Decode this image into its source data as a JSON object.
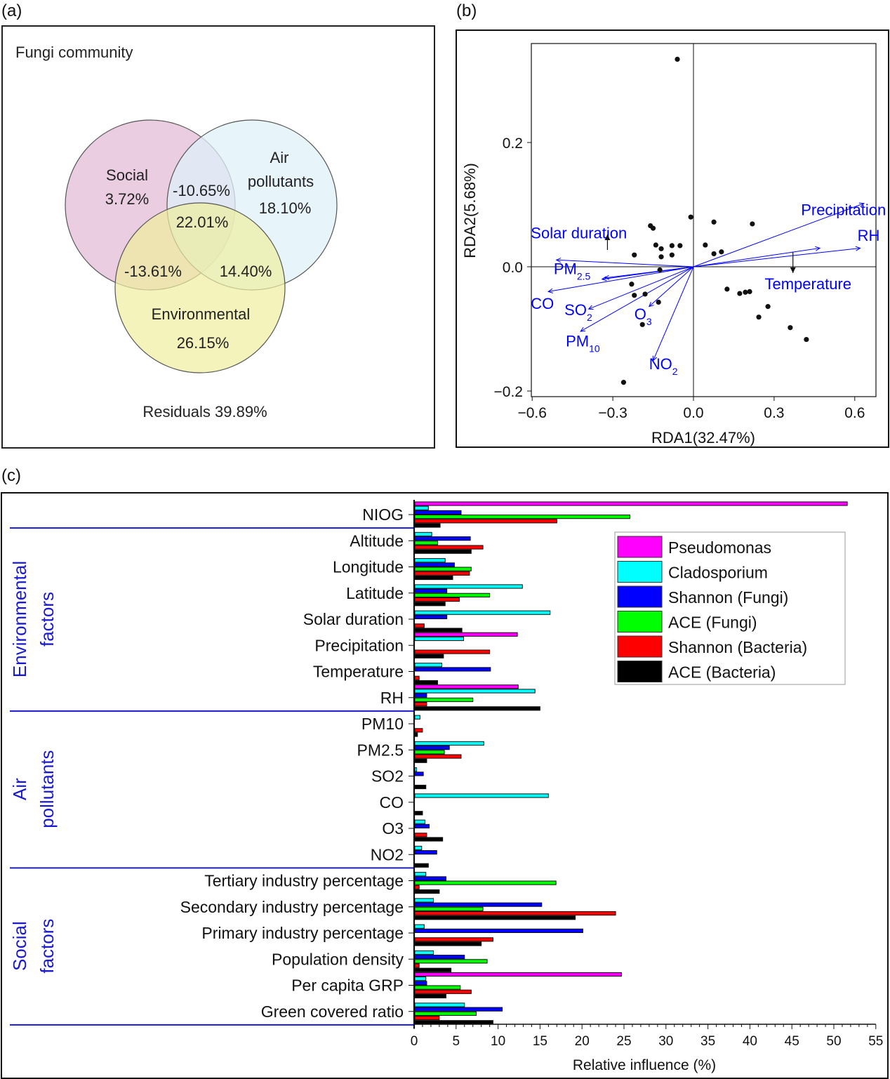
{
  "panels": {
    "a": {
      "label": "(a)",
      "title": "Fungi community",
      "sets": [
        {
          "name": "Social",
          "value": "3.72%",
          "color": "#e8c4dc"
        },
        {
          "name_line1": "Air",
          "name_line2": "pollutants",
          "value": "18.10%",
          "color": "#dff0f8"
        },
        {
          "name": "Environmental",
          "value": "26.15%",
          "color": "#eeee9e"
        }
      ],
      "overlaps": {
        "social_air": "-10.65%",
        "all_three": "22.01%",
        "social_env": "-13.61%",
        "air_env": "14.40%"
      },
      "residuals": "Residuals 39.89%"
    },
    "b": {
      "label": "(b)"
    },
    "c": {
      "label": "(c)"
    }
  },
  "chart_data": [
    {
      "type": "venn",
      "title": "Fungi community",
      "sets": [
        "Social",
        "Air pollutants",
        "Environmental"
      ],
      "unique": {
        "Social": 3.72,
        "Air pollutants": 18.1,
        "Environmental": 26.15
      },
      "pairwise": {
        "Social&Air pollutants": -10.65,
        "Social&Environmental": -13.61,
        "Air pollutants&Environmental": 14.4
      },
      "all": 22.01,
      "residuals": 39.89,
      "unit": "%"
    },
    {
      "type": "scatter",
      "title": "",
      "xlabel": "RDA1(32.47%)",
      "ylabel": "RDA2(5.68%)",
      "xlim": [
        -0.6,
        0.67
      ],
      "ylim": [
        -0.21,
        0.37
      ],
      "xticks": [
        -0.6,
        -0.3,
        0.0,
        0.3,
        0.6
      ],
      "xtick_labels": [
        "−0.6",
        "−0.3",
        "0.0",
        "0.3",
        "0.6"
      ],
      "yticks": [
        -0.2,
        0.0,
        0.2
      ],
      "ytick_labels": [
        "−0.2",
        "0.0",
        "0.2"
      ],
      "points": [
        [
          -0.06,
          0.334
        ],
        [
          -0.16,
          0.066
        ],
        [
          -0.15,
          0.062
        ],
        [
          -0.22,
          0.019
        ],
        [
          -0.14,
          0.035
        ],
        [
          -0.12,
          0.029
        ],
        [
          -0.12,
          0.016
        ],
        [
          -0.08,
          0.034
        ],
        [
          -0.08,
          0.019
        ],
        [
          -0.05,
          0.034
        ],
        [
          -0.01,
          0.08
        ],
        [
          0.076,
          0.072
        ],
        [
          0.044,
          0.035
        ],
        [
          0.076,
          0.021
        ],
        [
          0.104,
          0.024
        ],
        [
          0.219,
          0.069
        ],
        [
          -0.125,
          -0.005
        ],
        [
          -0.23,
          -0.028
        ],
        [
          -0.22,
          -0.046
        ],
        [
          -0.18,
          -0.044
        ],
        [
          -0.13,
          -0.057
        ],
        [
          -0.19,
          -0.093
        ],
        [
          -0.26,
          -0.186
        ],
        [
          0.125,
          -0.036
        ],
        [
          0.172,
          -0.043
        ],
        [
          0.193,
          -0.041
        ],
        [
          0.209,
          -0.04
        ],
        [
          0.277,
          -0.064
        ],
        [
          0.243,
          -0.081
        ],
        [
          0.36,
          -0.098
        ],
        [
          0.42,
          -0.117
        ]
      ],
      "arrows": [
        {
          "name": "Precipitation",
          "sub": "",
          "x": 0.634,
          "y": 0.102,
          "lx": 0.4,
          "ly": 0.083
        },
        {
          "name": "RH",
          "sub": "",
          "x": 0.62,
          "y": 0.03,
          "lx": 0.61,
          "ly": 0.042
        },
        {
          "name": "Temperature",
          "sub": "",
          "x": 0.47,
          "y": 0.03,
          "lx": 0.265,
          "ly": -0.036
        },
        {
          "name": "Solar duration",
          "sub": "",
          "x": -0.51,
          "y": 0.011,
          "lx": -0.605,
          "ly": 0.046
        },
        {
          "name": "PM",
          "sub": "2.5",
          "x": -0.34,
          "y": -0.02,
          "lx": -0.52,
          "ly": -0.012
        },
        {
          "name": "PM",
          "sub": "2.5",
          "x": -0.33,
          "y": -0.018,
          "lx": null,
          "ly": null
        },
        {
          "name": "CO",
          "sub": "",
          "x": -0.54,
          "y": -0.04,
          "lx": -0.605,
          "ly": -0.068
        },
        {
          "name": "SO",
          "sub": "2",
          "x": -0.39,
          "y": -0.068,
          "lx": -0.48,
          "ly": -0.078
        },
        {
          "name": "PM",
          "sub": "10",
          "x": -0.42,
          "y": -0.104,
          "lx": -0.475,
          "ly": -0.128
        },
        {
          "name": "O",
          "sub": "3",
          "x": -0.165,
          "y": -0.064,
          "lx": -0.22,
          "ly": -0.085
        },
        {
          "name": "NO",
          "sub": "2",
          "x": -0.15,
          "y": -0.151,
          "lx": -0.165,
          "ly": -0.165
        }
      ],
      "biplot_arrows_black": [
        {
          "from": [
            -0.32,
            0.027
          ],
          "to": [
            -0.32,
            0.052
          ]
        },
        {
          "from": [
            0.37,
            0.024
          ],
          "to": [
            0.37,
            -0.01
          ]
        }
      ],
      "arrow_color": "#0000ff"
    },
    {
      "type": "bar",
      "orientation": "horizontal",
      "xlabel": "Relative influence (%)",
      "xlim": [
        0,
        55
      ],
      "xticks": [
        0,
        5,
        10,
        15,
        20,
        25,
        30,
        35,
        40,
        45,
        50,
        55
      ],
      "legend_position": "top-right",
      "series": [
        {
          "name": "Pseudomonas",
          "color": "#ff00ff"
        },
        {
          "name": "Cladosporium",
          "color": "#00ffff"
        },
        {
          "name": "Shannon (Fungi)",
          "color": "#0000ff"
        },
        {
          "name": "ACE (Fungi)",
          "color": "#00ff00"
        },
        {
          "name": "Shannon (Bacteria)",
          "color": "#ff0000"
        },
        {
          "name": "ACE (Bacteria)",
          "color": "#000000"
        }
      ],
      "groups": [
        {
          "name": "",
          "name_line1": "",
          "name_line2": "",
          "categories": [
            "NIOG"
          ]
        },
        {
          "name": "Environmental factors",
          "name_line1": "Environmental",
          "name_line2": "factors",
          "categories": [
            "Altitude",
            "Longitude",
            "Latitude",
            "Solar duration",
            "Precipitation",
            "Temperature",
            "RH"
          ]
        },
        {
          "name": "Air pollutants",
          "name_line1": "Air",
          "name_line2": "pollutants",
          "categories": [
            "PM10",
            "PM2.5",
            "SO2",
            "CO",
            "O3",
            "NO2"
          ]
        },
        {
          "name": "Social factors",
          "name_line1": "Social",
          "name_line2": "factors",
          "categories": [
            "Tertiary industry percentage",
            "Secondary industry percentage",
            "Primary industry percentage",
            "Population density",
            "Per capita GRP",
            "Green covered ratio"
          ]
        }
      ],
      "group_color": "#1a1acc",
      "categories": [
        "NIOG",
        "Altitude",
        "Longitude",
        "Latitude",
        "Solar duration",
        "Precipitation",
        "Temperature",
        "RH",
        "PM10",
        "PM2.5",
        "SO2",
        "CO",
        "O3",
        "NO2",
        "Tertiary industry percentage",
        "Secondary industry percentage",
        "Primary industry percentage",
        "Population density",
        "Per capita GRP",
        "Green covered ratio"
      ],
      "values": {
        "Pseudomonas": [
          51.6,
          0,
          0,
          0,
          0,
          12.3,
          0,
          12.4,
          0,
          0,
          0,
          0,
          0,
          0,
          0,
          0,
          0,
          0,
          24.7,
          0
        ],
        "Cladosporium": [
          1.7,
          2.1,
          3.7,
          12.9,
          16.2,
          5.9,
          3.3,
          14.4,
          0.7,
          8.3,
          0.3,
          16.0,
          1.3,
          0.9,
          1.4,
          2.3,
          1.2,
          2.3,
          1.4,
          6.0
        ],
        "Shannon (Fungi)": [
          5.6,
          6.7,
          4.8,
          3.9,
          3.9,
          0,
          9.1,
          1.5,
          0,
          4.2,
          1.1,
          0,
          1.8,
          2.7,
          3.8,
          15.2,
          20.1,
          6.0,
          1.5,
          10.5
        ],
        "ACE (Fungi)": [
          25.7,
          2.8,
          6.8,
          9.0,
          0,
          0,
          0,
          7.0,
          0,
          3.6,
          0,
          0,
          0,
          0,
          16.9,
          8.2,
          0,
          8.7,
          5.5,
          7.4
        ],
        "Shannon (Bacteria)": [
          17.0,
          8.2,
          6.6,
          5.4,
          1.2,
          9.0,
          0.6,
          1.5,
          1.0,
          5.6,
          0,
          0,
          1.5,
          0,
          0.6,
          24.0,
          9.4,
          0.6,
          6.8,
          3.0
        ],
        "ACE (Bacteria)": [
          3.1,
          6.8,
          4.6,
          3.7,
          5.7,
          3.5,
          2.8,
          15.0,
          0.4,
          1.5,
          1.4,
          1.0,
          3.4,
          1.7,
          3.0,
          19.2,
          8.0,
          4.4,
          3.8,
          9.4
        ]
      }
    }
  ]
}
